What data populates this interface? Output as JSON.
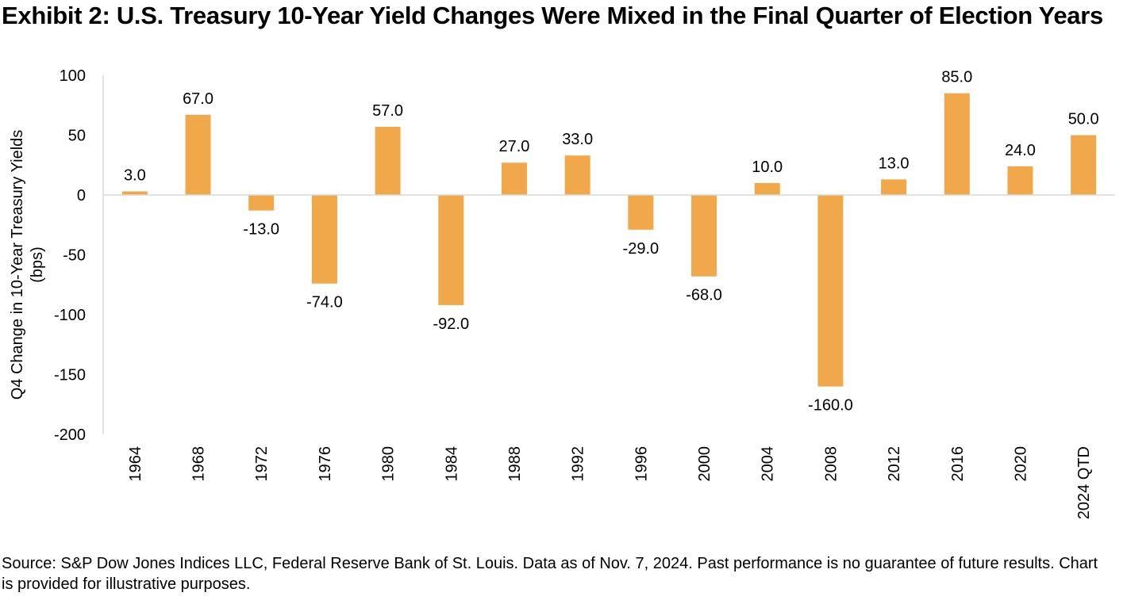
{
  "chart_data": {
    "type": "bar",
    "title": "Exhibit 2: U.S. Treasury 10-Year Yield Changes Were Mixed in the Final Quarter of Election Years",
    "xlabel": "",
    "ylabel": "Q4 Change in 10-Year Treasury Yields (bps)",
    "ylabel_lines": [
      "Q4 Change in 10-Year Treasury Yields",
      "(bps)"
    ],
    "ylim": [
      -200,
      100
    ],
    "yticks": [
      100,
      50,
      0,
      -50,
      -100,
      -150,
      -200
    ],
    "ytick_labels": [
      "100",
      "50",
      "0",
      "-50",
      "-100",
      "-150",
      "-200"
    ],
    "categories": [
      "1964",
      "1968",
      "1972",
      "1976",
      "1980",
      "1984",
      "1988",
      "1992",
      "1996",
      "2000",
      "2004",
      "2008",
      "2012",
      "2016",
      "2020",
      "2024 QTD"
    ],
    "values": [
      3.0,
      67.0,
      -13.0,
      -74.0,
      57.0,
      -92.0,
      27.0,
      33.0,
      -29.0,
      -68.0,
      10.0,
      -160.0,
      13.0,
      85.0,
      24.0,
      50.0
    ],
    "data_labels": [
      "3.0",
      "67.0",
      "-13.0",
      "-74.0",
      "57.0",
      "-92.0",
      "27.0",
      "33.0",
      "-29.0",
      "-68.0",
      "10.0",
      "-160.0",
      "13.0",
      "85.0",
      "24.0",
      "50.0"
    ],
    "bar_color": "#F0A84B",
    "axis_color": "#D9D9D9",
    "grid": false,
    "legend": "none"
  },
  "footnote": "Source: S&P Dow Jones Indices LLC, Federal Reserve Bank of St. Louis. Data as of Nov. 7, 2024. Past performance is no guarantee of future results. Chart is provided for illustrative purposes."
}
